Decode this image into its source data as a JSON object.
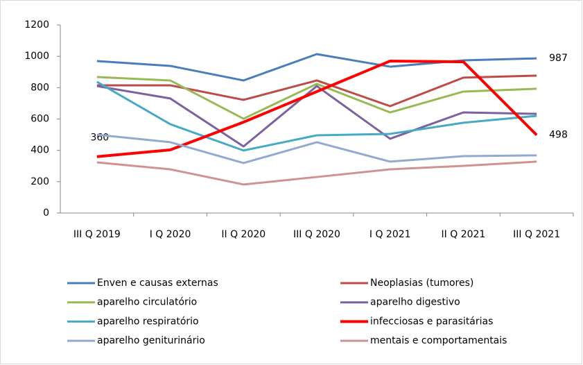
{
  "chart_data": {
    "type": "line",
    "categories": [
      "III Q 2019",
      "I Q 2020",
      "II Q 2020",
      "III Q 2020",
      "I Q 2021",
      "II Q 2021",
      "III Q 2021"
    ],
    "ylim": [
      0,
      1200
    ],
    "yticks": [
      0,
      200,
      400,
      600,
      800,
      1000,
      1200
    ],
    "grid": false,
    "series": [
      {
        "name": "Enven e causas externas",
        "color": "#4a7ebb",
        "values": [
          970,
          939,
          846,
          1014,
          934,
          974,
          987
        ],
        "value_labels": [
          null,
          null,
          null,
          null,
          null,
          null,
          "987"
        ]
      },
      {
        "name": "Neoplasias (tumores)",
        "color": "#be4b48",
        "values": [
          815,
          815,
          722,
          846,
          682,
          864,
          877
        ]
      },
      {
        "name": "aparelho circulatório",
        "color": "#98b954",
        "values": [
          868,
          846,
          602,
          824,
          642,
          775,
          793
        ]
      },
      {
        "name": "aparelho digestivo",
        "color": "#7d60a0",
        "values": [
          810,
          731,
          425,
          810,
          474,
          642,
          633
        ]
      },
      {
        "name": "aparelho respiratório",
        "color": "#46aac5",
        "values": [
          837,
          567,
          399,
          496,
          505,
          576,
          620
        ]
      },
      {
        "name": " infecciosas e parasitárias",
        "color": "#ff0000",
        "width": 4,
        "values": [
          360,
          403,
          580,
          775,
          970,
          965,
          498
        ],
        "value_labels": [
          "360",
          null,
          null,
          null,
          null,
          null,
          "498"
        ]
      },
      {
        "name": "aparelho geniturinário",
        "color": "#93a9cf",
        "values": [
          500,
          452,
          319,
          452,
          328,
          363,
          368
        ]
      },
      {
        "name": "mentais e comportamentais",
        "color": "#d19392",
        "values": [
          323,
          279,
          182,
          230,
          279,
          301,
          328
        ]
      }
    ]
  }
}
